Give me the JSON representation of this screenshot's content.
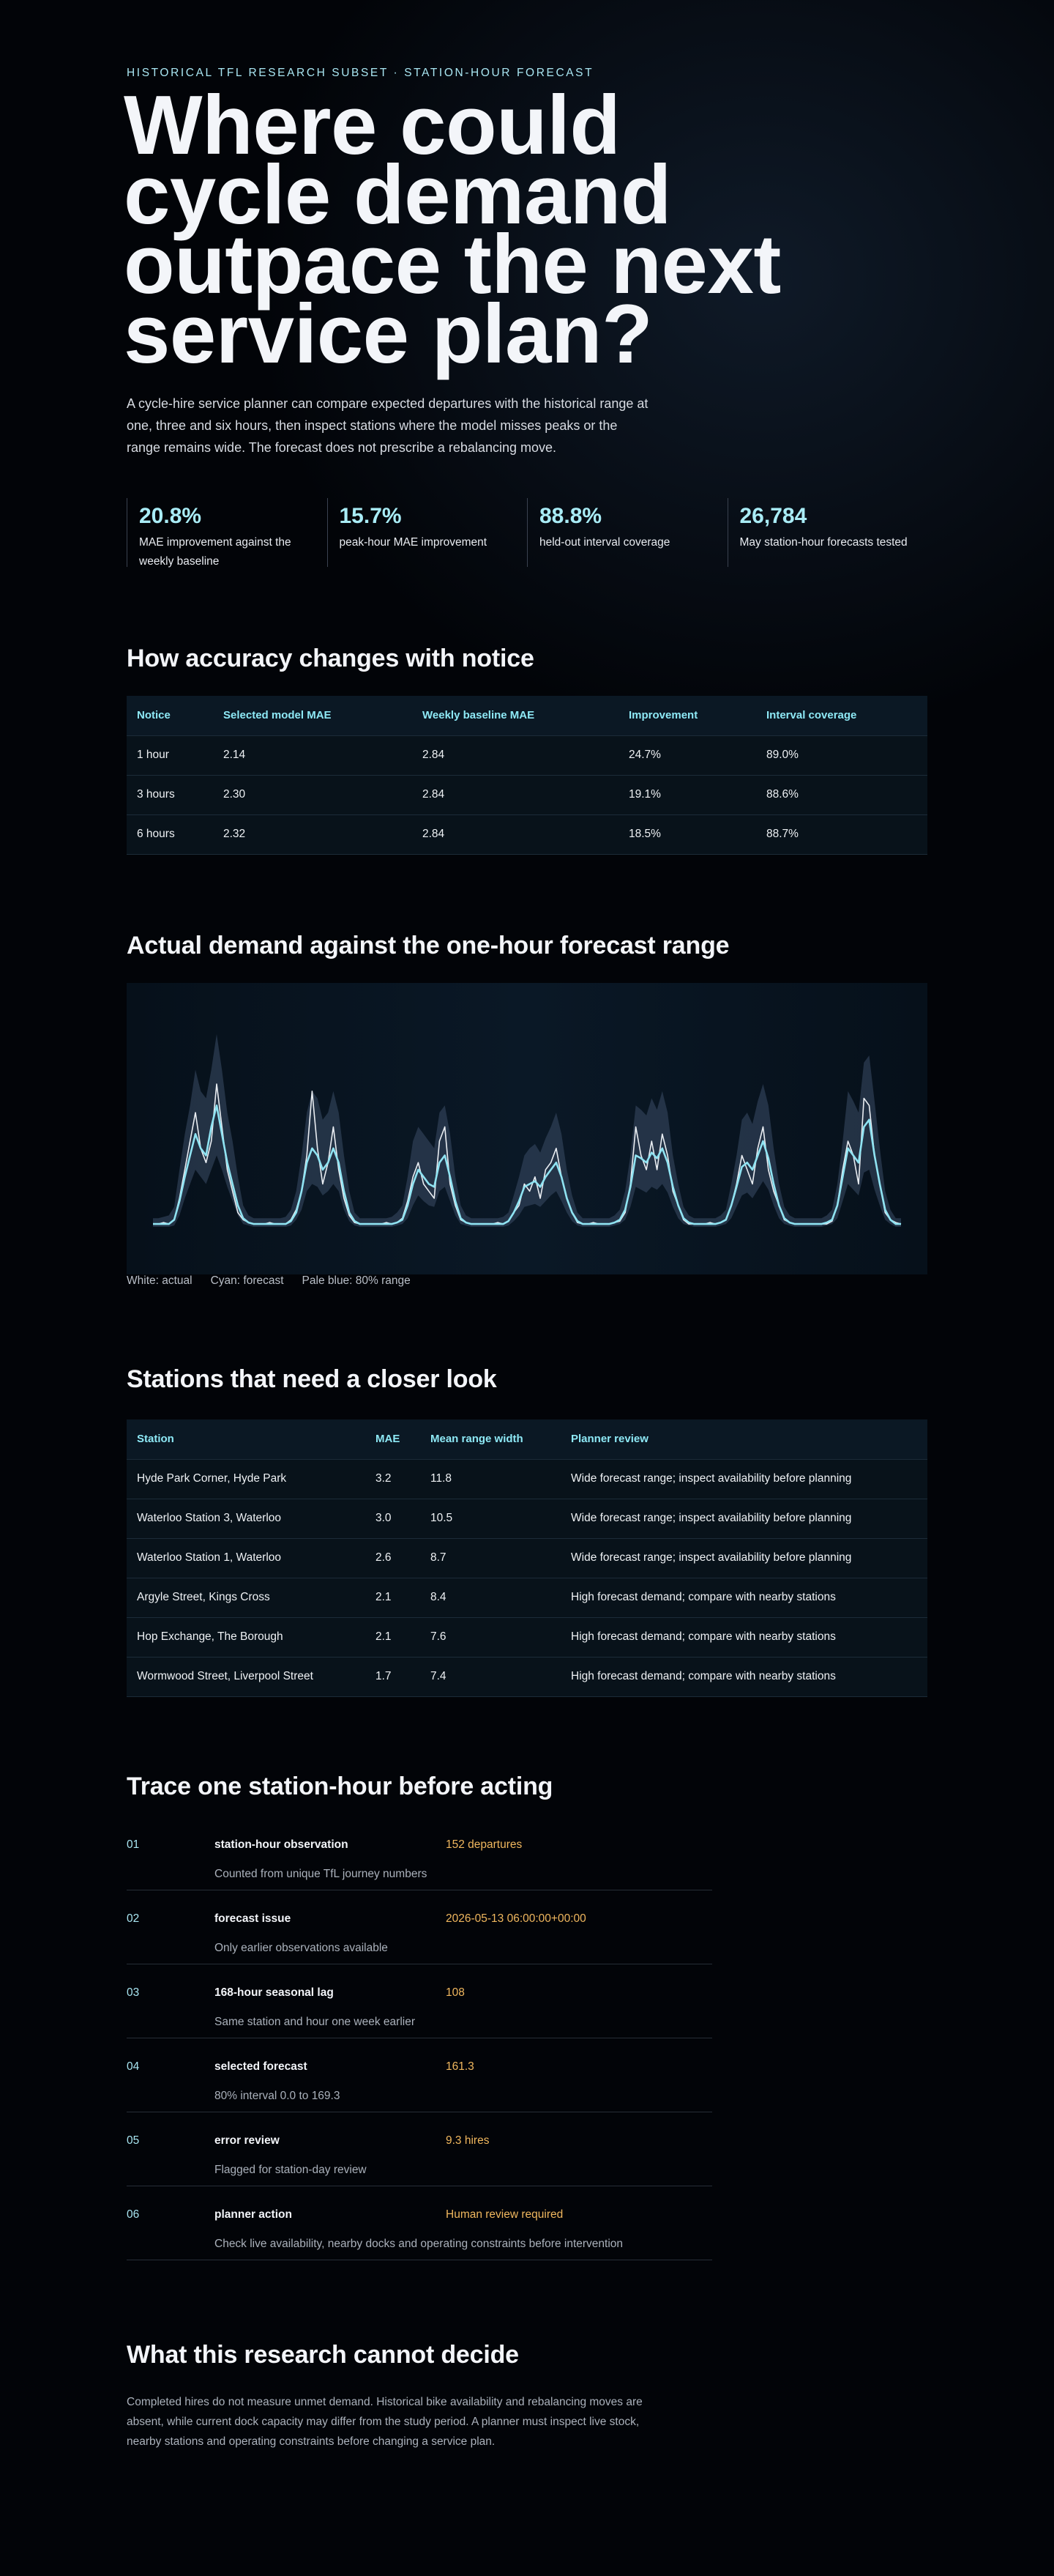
{
  "hero": {
    "eyebrow": "HISTORICAL TFL RESEARCH SUBSET · STATION-HOUR FORECAST",
    "title": "Where could cycle demand outpace the next service plan?",
    "lede": "A cycle-hire service planner can compare expected departures with the historical range at one, three and six hours, then inspect stations where the model misses peaks or the range remains wide. The forecast does not prescribe a rebalancing move."
  },
  "stats": [
    {
      "value": "20.8%",
      "label": "MAE improvement against the weekly baseline"
    },
    {
      "value": "15.7%",
      "label": "peak-hour MAE improvement"
    },
    {
      "value": "88.8%",
      "label": "held-out interval coverage"
    },
    {
      "value": "26,784",
      "label": "May station-hour forecasts tested"
    }
  ],
  "accuracy": {
    "heading": "How accuracy changes with notice",
    "columns": [
      "Notice",
      "Selected model MAE",
      "Weekly baseline MAE",
      "Improvement",
      "Interval coverage"
    ],
    "rows": [
      [
        "1 hour",
        "2.14",
        "2.84",
        "24.7%",
        "89.0%"
      ],
      [
        "3 hours",
        "2.30",
        "2.84",
        "19.1%",
        "88.6%"
      ],
      [
        "6 hours",
        "2.32",
        "2.84",
        "18.5%",
        "88.7%"
      ]
    ]
  },
  "chart_section": {
    "heading": "Actual demand against the one-hour forecast range",
    "legend": [
      "White: actual",
      "Cyan: forecast",
      "Pale blue: 80% range"
    ]
  },
  "chart_data": {
    "type": "line",
    "title": "",
    "xlabel": "",
    "ylabel": "",
    "grid": false,
    "axes_shown": false,
    "colors": {
      "actual": "#e9edf2",
      "forecast": "#8fe3f2",
      "range": "#3a4d66"
    },
    "series": [
      {
        "name": "actual",
        "values": [
          2,
          2,
          3,
          2,
          5,
          20,
          40,
          60,
          80,
          55,
          45,
          60,
          100,
          70,
          40,
          25,
          10,
          5,
          3,
          2,
          2,
          2,
          3,
          2,
          2,
          2,
          5,
          12,
          25,
          50,
          95,
          55,
          30,
          45,
          70,
          40,
          20,
          8,
          3,
          2,
          2,
          2,
          2,
          2,
          3,
          2,
          3,
          6,
          18,
          35,
          45,
          30,
          25,
          20,
          60,
          70,
          30,
          15,
          5,
          3,
          2,
          2,
          2,
          2,
          2,
          3,
          2,
          4,
          10,
          15,
          30,
          25,
          35,
          20,
          40,
          45,
          55,
          35,
          20,
          10,
          3,
          2,
          2,
          3,
          2,
          2,
          2,
          3,
          4,
          10,
          30,
          70,
          50,
          40,
          60,
          40,
          65,
          50,
          25,
          15,
          5,
          2,
          2,
          2,
          2,
          3,
          2,
          3,
          5,
          15,
          30,
          50,
          40,
          30,
          55,
          70,
          40,
          25,
          15,
          5,
          3,
          2,
          2,
          2,
          2,
          2,
          2,
          2,
          4,
          15,
          40,
          60,
          50,
          30,
          90,
          85,
          50,
          30,
          10,
          5,
          3,
          2
        ]
      },
      {
        "name": "forecast",
        "values": [
          2,
          2,
          2,
          2,
          5,
          18,
          35,
          50,
          65,
          55,
          50,
          70,
          85,
          65,
          45,
          30,
          15,
          6,
          3,
          2,
          2,
          2,
          2,
          2,
          2,
          2,
          4,
          10,
          25,
          45,
          55,
          50,
          40,
          45,
          55,
          45,
          25,
          10,
          4,
          2,
          2,
          2,
          2,
          2,
          2,
          2,
          3,
          5,
          15,
          30,
          40,
          35,
          30,
          28,
          45,
          50,
          35,
          18,
          6,
          3,
          2,
          2,
          2,
          2,
          2,
          2,
          2,
          4,
          10,
          18,
          28,
          30,
          32,
          28,
          35,
          40,
          45,
          35,
          20,
          10,
          4,
          2,
          2,
          2,
          2,
          2,
          2,
          3,
          5,
          12,
          28,
          50,
          48,
          45,
          52,
          48,
          55,
          45,
          28,
          15,
          6,
          3,
          2,
          2,
          2,
          2,
          2,
          3,
          5,
          15,
          28,
          42,
          45,
          40,
          50,
          60,
          48,
          30,
          15,
          6,
          3,
          2,
          2,
          2,
          2,
          2,
          2,
          3,
          5,
          15,
          35,
          55,
          50,
          45,
          70,
          75,
          50,
          30,
          12,
          5,
          2,
          2
        ]
      },
      {
        "name": "range_low",
        "values": [
          0,
          0,
          0,
          0,
          1,
          8,
          20,
          30,
          40,
          35,
          30,
          40,
          50,
          40,
          28,
          18,
          8,
          2,
          1,
          0,
          0,
          0,
          0,
          0,
          0,
          0,
          1,
          5,
          12,
          25,
          30,
          28,
          22,
          25,
          30,
          25,
          12,
          4,
          1,
          0,
          0,
          0,
          0,
          0,
          0,
          0,
          1,
          2,
          6,
          15,
          22,
          18,
          15,
          14,
          25,
          28,
          18,
          8,
          2,
          1,
          0,
          0,
          0,
          0,
          0,
          0,
          0,
          1,
          4,
          8,
          14,
          15,
          16,
          14,
          18,
          22,
          25,
          18,
          10,
          4,
          1,
          0,
          0,
          0,
          0,
          0,
          0,
          1,
          2,
          5,
          14,
          28,
          26,
          24,
          28,
          26,
          30,
          24,
          14,
          6,
          2,
          1,
          0,
          0,
          0,
          0,
          0,
          1,
          2,
          6,
          14,
          22,
          24,
          20,
          26,
          32,
          26,
          15,
          6,
          2,
          1,
          0,
          0,
          0,
          0,
          0,
          0,
          1,
          2,
          6,
          18,
          30,
          26,
          22,
          38,
          40,
          26,
          15,
          5,
          2,
          0,
          0
        ]
      },
      {
        "name": "range_high",
        "values": [
          6,
          6,
          7,
          8,
          14,
          40,
          65,
          85,
          110,
          95,
          90,
          110,
          135,
          110,
          80,
          60,
          35,
          15,
          8,
          6,
          6,
          6,
          6,
          6,
          6,
          7,
          12,
          25,
          50,
          80,
          95,
          90,
          75,
          80,
          95,
          80,
          50,
          25,
          10,
          6,
          6,
          6,
          6,
          6,
          6,
          7,
          10,
          15,
          35,
          60,
          70,
          65,
          60,
          55,
          80,
          85,
          65,
          35,
          15,
          8,
          6,
          6,
          6,
          6,
          6,
          6,
          7,
          10,
          22,
          35,
          50,
          55,
          58,
          52,
          62,
          70,
          80,
          65,
          40,
          22,
          10,
          6,
          6,
          6,
          6,
          6,
          6,
          8,
          12,
          25,
          50,
          85,
          82,
          78,
          90,
          82,
          95,
          80,
          50,
          30,
          14,
          8,
          6,
          6,
          6,
          6,
          6,
          8,
          12,
          30,
          50,
          75,
          80,
          72,
          88,
          100,
          85,
          55,
          30,
          14,
          8,
          6,
          6,
          6,
          6,
          6,
          6,
          8,
          12,
          30,
          60,
          95,
          88,
          80,
          115,
          120,
          88,
          55,
          25,
          12,
          6,
          6
        ]
      }
    ]
  },
  "stations": {
    "heading": "Stations that need a closer look",
    "columns": [
      "Station",
      "MAE",
      "Mean range width",
      "Planner review"
    ],
    "rows": [
      [
        "Hyde Park Corner, Hyde Park",
        "3.2",
        "11.8",
        "Wide forecast range; inspect availability before planning"
      ],
      [
        "Waterloo Station 3, Waterloo",
        "3.0",
        "10.5",
        "Wide forecast range; inspect availability before planning"
      ],
      [
        "Waterloo Station 1, Waterloo",
        "2.6",
        "8.7",
        "Wide forecast range; inspect availability before planning"
      ],
      [
        "Argyle Street, Kings Cross",
        "2.1",
        "8.4",
        "High forecast demand; compare with nearby stations"
      ],
      [
        "Hop Exchange, The Borough",
        "2.1",
        "7.6",
        "High forecast demand; compare with nearby stations"
      ],
      [
        "Wormwood Street, Liverpool Street",
        "1.7",
        "7.4",
        "High forecast demand; compare with nearby stations"
      ]
    ]
  },
  "trace": {
    "heading": "Trace one station-hour before acting",
    "steps": [
      {
        "num": "01",
        "name": "station-hour observation",
        "value": "152 departures",
        "note": "Counted from unique TfL journey numbers"
      },
      {
        "num": "02",
        "name": "forecast issue",
        "value": "2026-05-13 06:00:00+00:00",
        "note": "Only earlier observations available"
      },
      {
        "num": "03",
        "name": "168-hour seasonal lag",
        "value": "108",
        "note": "Same station and hour one week earlier"
      },
      {
        "num": "04",
        "name": "selected forecast",
        "value": "161.3",
        "note": "80% interval 0.0 to 169.3"
      },
      {
        "num": "05",
        "name": "error review",
        "value": "9.3 hires",
        "note": "Flagged for station-day review"
      },
      {
        "num": "06",
        "name": "planner action",
        "value": "Human review required",
        "note": "Check live availability, nearby docks and operating constraints before intervention"
      }
    ]
  },
  "limits": {
    "heading": "What this research cannot decide",
    "body": "Completed hires do not measure unmet demand. Historical bike availability and rebalancing moves are absent, while current dock capacity may differ from the study period. A planner must inspect live stock, nearby stations and operating constraints before changing a service plan."
  }
}
